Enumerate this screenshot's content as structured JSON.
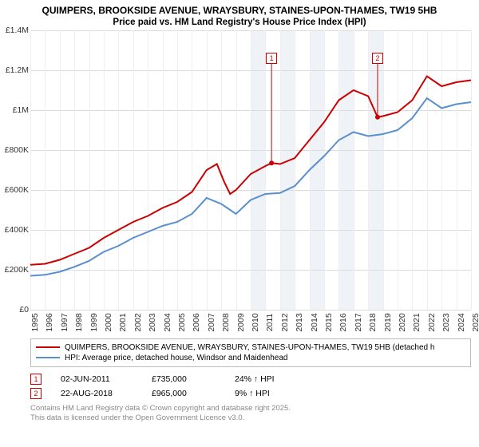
{
  "title_line1": "QUIMPERS, BROOKSIDE AVENUE, WRAYSBURY, STAINES-UPON-THAMES, TW19 5HB",
  "title_line2": "Price paid vs. HM Land Registry's House Price Index (HPI)",
  "chart": {
    "type": "line",
    "background_color": "#ffffff",
    "grid_color": "#dcdcdc",
    "vgrid_color": "#eeeeee",
    "shaded_band_color": "#eff3f8",
    "ylim": [
      0,
      1400000
    ],
    "ytick_step": 200000,
    "ytick_labels": [
      "£0",
      "£200K",
      "£400K",
      "£600K",
      "£800K",
      "£1M",
      "£1.2M",
      "£1.4M"
    ],
    "xlim": [
      1995,
      2025
    ],
    "xtick_step": 1,
    "xtick_labels": [
      "1995",
      "1996",
      "1997",
      "1998",
      "1999",
      "2000",
      "2001",
      "2002",
      "2003",
      "2004",
      "2005",
      "2006",
      "2007",
      "2008",
      "2009",
      "2010",
      "2011",
      "2012",
      "2013",
      "2014",
      "2015",
      "2016",
      "2017",
      "2018",
      "2019",
      "2020",
      "2021",
      "2022",
      "2023",
      "2024",
      "2025"
    ],
    "shaded_bands": [
      [
        2010,
        2011
      ],
      [
        2012,
        2013
      ],
      [
        2014,
        2015
      ],
      [
        2016,
        2017
      ],
      [
        2018,
        2019
      ]
    ],
    "series": [
      {
        "name": "price_paid",
        "color": "#cc0000",
        "width": 2,
        "label": "QUIMPERS, BROOKSIDE AVENUE, WRAYSBURY, STAINES-UPON-THAMES, TW19 5HB (detached h",
        "points": [
          [
            1995,
            225000
          ],
          [
            1996,
            230000
          ],
          [
            1997,
            250000
          ],
          [
            1998,
            280000
          ],
          [
            1999,
            310000
          ],
          [
            2000,
            360000
          ],
          [
            2001,
            400000
          ],
          [
            2002,
            440000
          ],
          [
            2003,
            470000
          ],
          [
            2004,
            510000
          ],
          [
            2005,
            540000
          ],
          [
            2006,
            590000
          ],
          [
            2007,
            700000
          ],
          [
            2007.7,
            730000
          ],
          [
            2008.2,
            640000
          ],
          [
            2008.6,
            580000
          ],
          [
            2009,
            600000
          ],
          [
            2010,
            680000
          ],
          [
            2011,
            720000
          ],
          [
            2011.42,
            735000
          ],
          [
            2012,
            730000
          ],
          [
            2013,
            760000
          ],
          [
            2014,
            850000
          ],
          [
            2015,
            940000
          ],
          [
            2016,
            1050000
          ],
          [
            2017,
            1100000
          ],
          [
            2018,
            1070000
          ],
          [
            2018.64,
            965000
          ],
          [
            2019,
            970000
          ],
          [
            2020,
            990000
          ],
          [
            2021,
            1050000
          ],
          [
            2022,
            1170000
          ],
          [
            2023,
            1120000
          ],
          [
            2024,
            1140000
          ],
          [
            2025,
            1150000
          ]
        ]
      },
      {
        "name": "hpi",
        "color": "#5a8fce",
        "width": 2,
        "label": "HPI: Average price, detached house, Windsor and Maidenhead",
        "points": [
          [
            1995,
            170000
          ],
          [
            1996,
            175000
          ],
          [
            1997,
            190000
          ],
          [
            1998,
            215000
          ],
          [
            1999,
            245000
          ],
          [
            2000,
            290000
          ],
          [
            2001,
            320000
          ],
          [
            2002,
            360000
          ],
          [
            2003,
            390000
          ],
          [
            2004,
            420000
          ],
          [
            2005,
            440000
          ],
          [
            2006,
            480000
          ],
          [
            2007,
            560000
          ],
          [
            2008,
            530000
          ],
          [
            2009,
            480000
          ],
          [
            2010,
            550000
          ],
          [
            2011,
            580000
          ],
          [
            2012,
            585000
          ],
          [
            2013,
            620000
          ],
          [
            2014,
            700000
          ],
          [
            2015,
            770000
          ],
          [
            2016,
            850000
          ],
          [
            2017,
            890000
          ],
          [
            2018,
            870000
          ],
          [
            2019,
            880000
          ],
          [
            2020,
            900000
          ],
          [
            2021,
            960000
          ],
          [
            2022,
            1060000
          ],
          [
            2023,
            1010000
          ],
          [
            2024,
            1030000
          ],
          [
            2025,
            1040000
          ]
        ]
      }
    ],
    "markers": [
      {
        "num": "1",
        "x": 2011.42,
        "y": 735000,
        "color": "#cc0000",
        "label_y": 1260000
      },
      {
        "num": "2",
        "x": 2018.64,
        "y": 965000,
        "color": "#cc0000",
        "label_y": 1260000
      }
    ]
  },
  "legend": [
    {
      "color": "#cc0000",
      "text": "QUIMPERS, BROOKSIDE AVENUE, WRAYSBURY, STAINES-UPON-THAMES, TW19 5HB (detached h"
    },
    {
      "color": "#5a8fce",
      "text": "HPI: Average price, detached house, Windsor and Maidenhead"
    }
  ],
  "sales": [
    {
      "num": "1",
      "color": "#cc0000",
      "date": "02-JUN-2011",
      "price": "£735,000",
      "pct": "24% ↑ HPI"
    },
    {
      "num": "2",
      "color": "#cc0000",
      "date": "22-AUG-2018",
      "price": "£965,000",
      "pct": "9% ↑ HPI"
    }
  ],
  "attribution_line1": "Contains HM Land Registry data © Crown copyright and database right 2025.",
  "attribution_line2": "This data is licensed under the Open Government Licence v3.0."
}
